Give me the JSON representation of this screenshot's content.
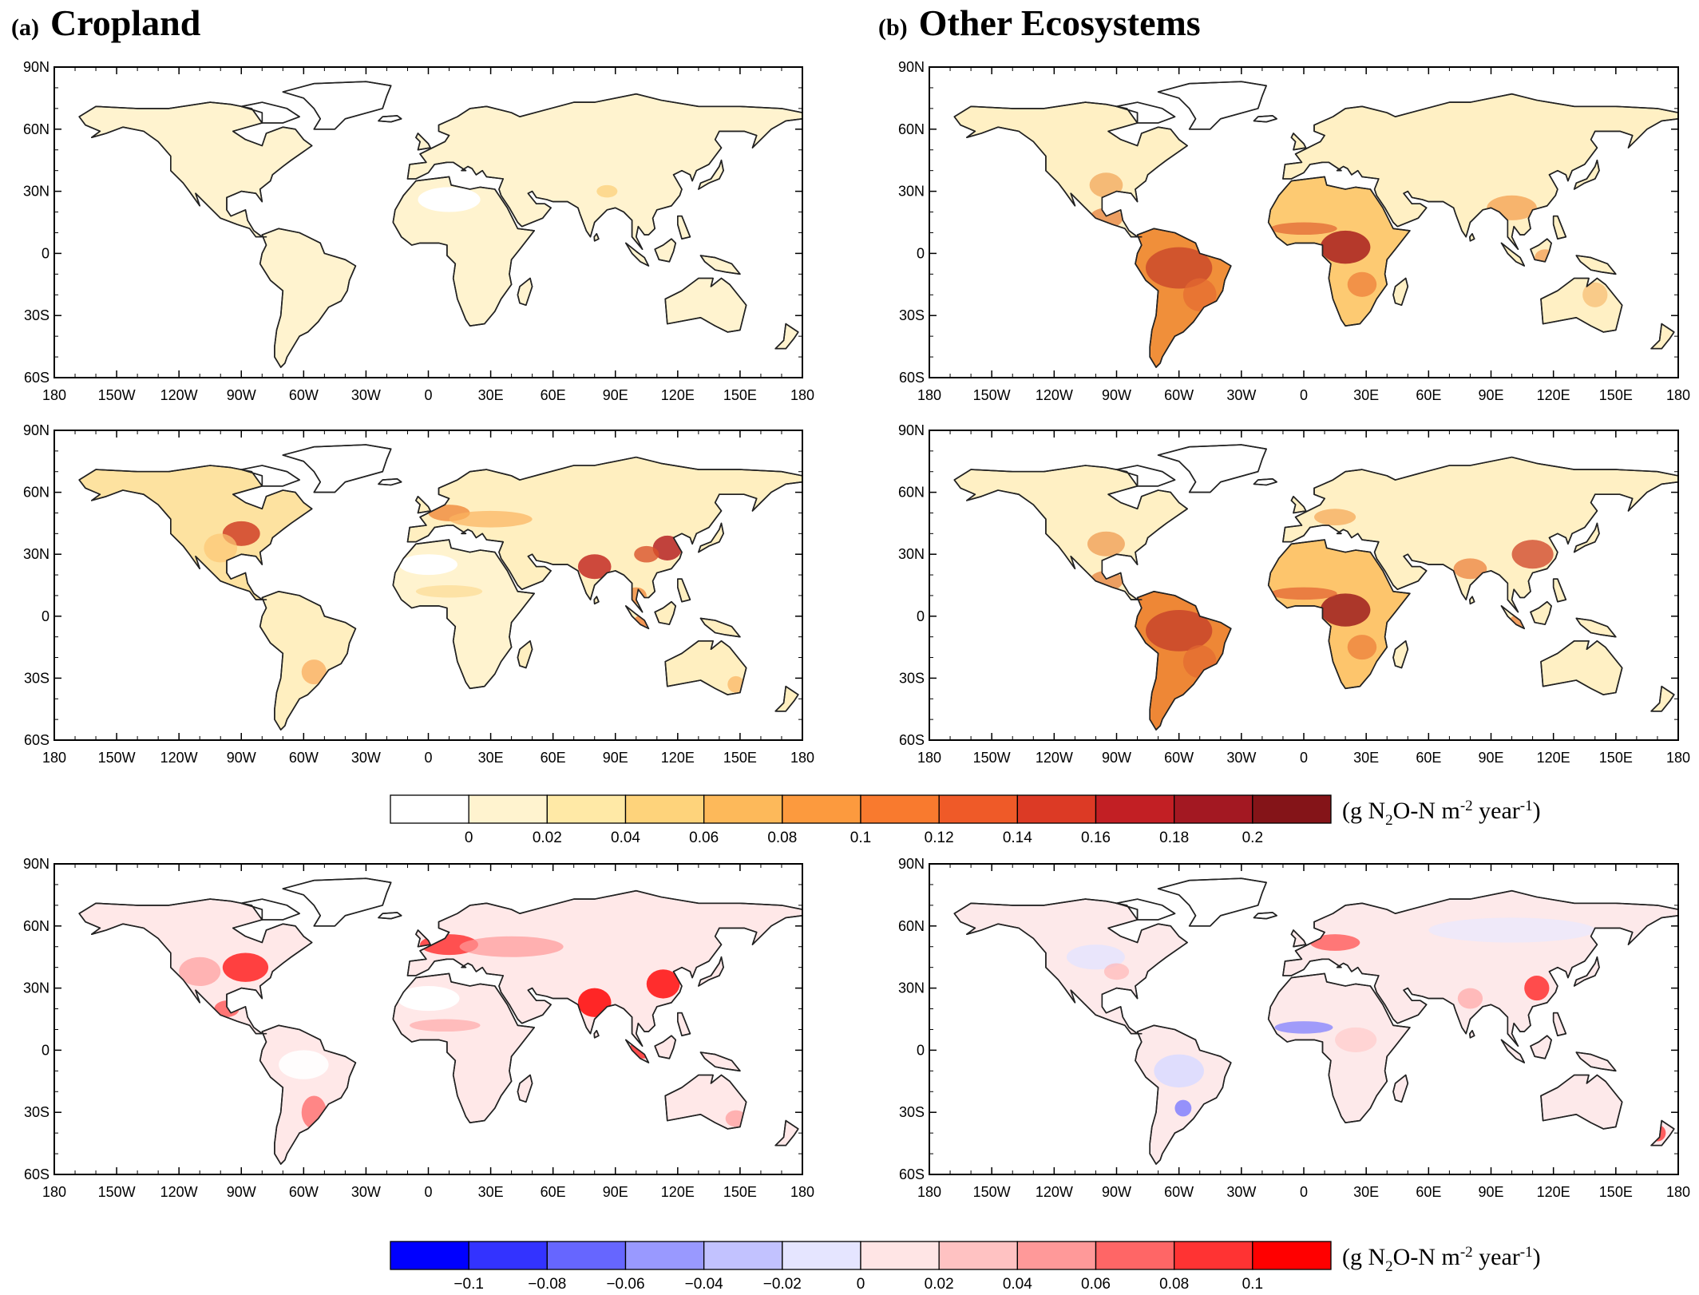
{
  "panels": {
    "a": {
      "letter": "(a)",
      "title": "Cropland"
    },
    "b": {
      "letter": "(b)",
      "title": "Other Ecosystems"
    }
  },
  "axes": {
    "lat_ticks": [
      "90N",
      "60N",
      "30N",
      "0",
      "30S",
      "60S"
    ],
    "lon_ticks": [
      "180",
      "150W",
      "120W",
      "90W",
      "60W",
      "30W",
      "0",
      "30E",
      "60E",
      "90E",
      "120E",
      "150E",
      "180"
    ]
  },
  "colorbars": {
    "flux": {
      "labels": [
        "0",
        "0.02",
        "0.04",
        "0.06",
        "0.08",
        "0.1",
        "0.12",
        "0.14",
        "0.16",
        "0.18",
        "0.2"
      ],
      "colors": [
        "#ffffff",
        "#fff3cf",
        "#ffe9a6",
        "#fed37b",
        "#fdb95a",
        "#fc9a3e",
        "#f97a2e",
        "#ef5a28",
        "#dc3a25",
        "#c21f24",
        "#a31822",
        "#841418"
      ],
      "unit": {
        "pre": "(g N",
        "sub1": "2",
        "mid": "O-N m",
        "sup1": "-2",
        "mid2": " year",
        "sup2": "-1",
        "post": ")"
      }
    },
    "diff": {
      "labels": [
        "−0.1",
        "−0.08",
        "−0.06",
        "−0.04",
        "−0.02",
        "0",
        "0.02",
        "0.04",
        "0.06",
        "0.08",
        "0.1"
      ],
      "colors": [
        "#0000ff",
        "#3333ff",
        "#6666ff",
        "#9999ff",
        "#c2c2ff",
        "#e5e5ff",
        "#ffe5e5",
        "#ffc2c2",
        "#ff9999",
        "#ff6666",
        "#ff3333",
        "#ff0000"
      ],
      "unit": {
        "pre": "(g N",
        "sub1": "2",
        "mid": "O-N m",
        "sup1": "-2",
        "mid2": " year",
        "sup2": "-1",
        "post": ")"
      }
    }
  },
  "colors": {
    "frame": "#000000",
    "ocean": "#ffffff",
    "coast": "#222222"
  }
}
